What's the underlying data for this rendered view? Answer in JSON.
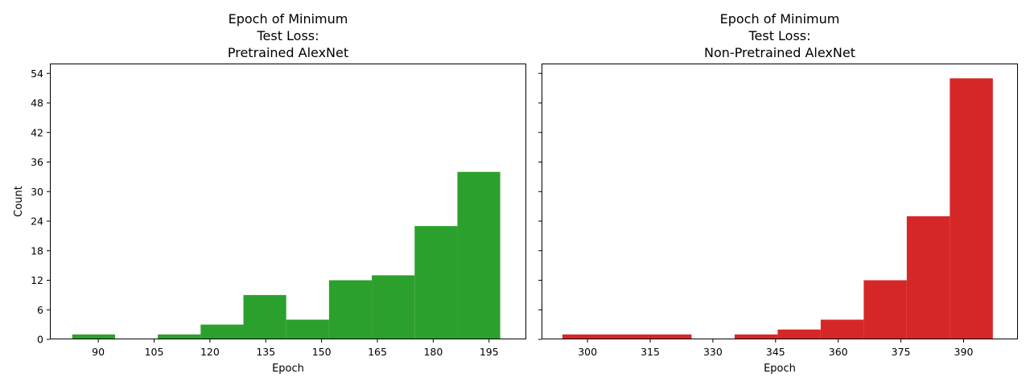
{
  "chart_data": [
    {
      "type": "bar",
      "title_lines": [
        "Epoch of Minimum",
        "Test Loss:",
        "Pretrained AlexNet"
      ],
      "xlabel": "Epoch",
      "ylabel": "Count",
      "color": "#2ca02c",
      "xlim": [
        77,
        205
      ],
      "ylim": [
        0,
        56
      ],
      "xticks": [
        90,
        105,
        120,
        135,
        150,
        165,
        180,
        195
      ],
      "yticks": [
        0,
        6,
        12,
        18,
        24,
        30,
        36,
        42,
        48,
        54
      ],
      "bins": [
        {
          "x0": 83,
          "x1": 94.5,
          "count": 1
        },
        {
          "x0": 94.5,
          "x1": 106,
          "count": 0
        },
        {
          "x0": 106,
          "x1": 117.5,
          "count": 1
        },
        {
          "x0": 117.5,
          "x1": 129,
          "count": 3
        },
        {
          "x0": 129,
          "x1": 140.5,
          "count": 9
        },
        {
          "x0": 140.5,
          "x1": 152,
          "count": 4
        },
        {
          "x0": 152,
          "x1": 163.5,
          "count": 12
        },
        {
          "x0": 163.5,
          "x1": 175,
          "count": 13
        },
        {
          "x0": 175,
          "x1": 186.5,
          "count": 23
        },
        {
          "x0": 186.5,
          "x1": 198,
          "count": 34
        }
      ]
    },
    {
      "type": "bar",
      "title_lines": [
        "Epoch of Minimum",
        "Test Loss:",
        "Non-Pretrained AlexNet"
      ],
      "xlabel": "Epoch",
      "ylabel": "",
      "color": "#d62728",
      "xlim": [
        289,
        403
      ],
      "ylim": [
        0,
        56
      ],
      "xticks": [
        300,
        315,
        330,
        345,
        360,
        375,
        390
      ],
      "yticks": [
        0,
        6,
        12,
        18,
        24,
        30,
        36,
        42,
        48,
        54
      ],
      "bins": [
        {
          "x0": 294,
          "x1": 304.3,
          "count": 1
        },
        {
          "x0": 304.3,
          "x1": 314.6,
          "count": 1
        },
        {
          "x0": 314.6,
          "x1": 324.9,
          "count": 1
        },
        {
          "x0": 324.9,
          "x1": 335.2,
          "count": 0
        },
        {
          "x0": 335.2,
          "x1": 345.5,
          "count": 1
        },
        {
          "x0": 345.5,
          "x1": 355.8,
          "count": 2
        },
        {
          "x0": 355.8,
          "x1": 366.1,
          "count": 4
        },
        {
          "x0": 366.1,
          "x1": 376.4,
          "count": 12
        },
        {
          "x0": 376.4,
          "x1": 386.7,
          "count": 25
        },
        {
          "x0": 386.7,
          "x1": 397,
          "count": 53
        }
      ]
    }
  ]
}
